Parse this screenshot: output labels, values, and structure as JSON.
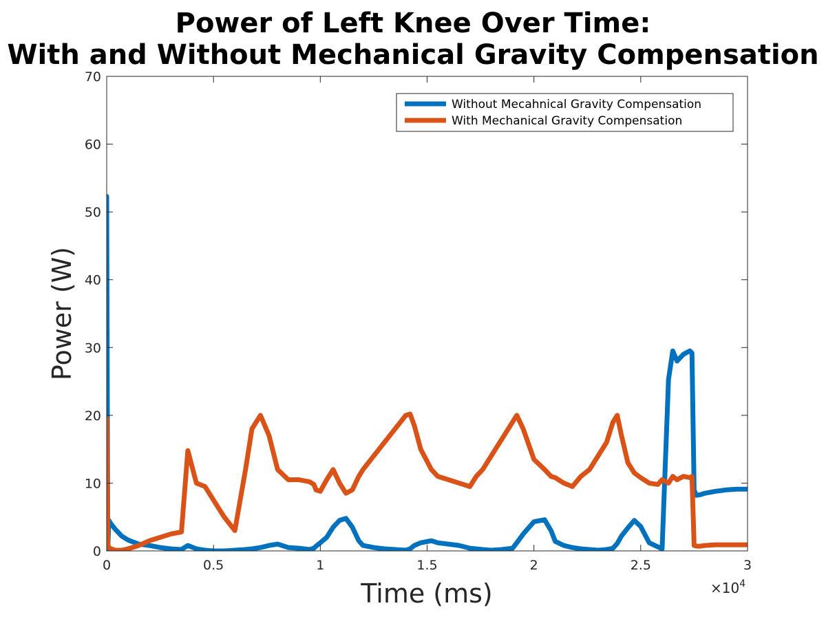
{
  "chart_data": {
    "type": "line",
    "title_lines": [
      "Power of Left Knee Over Time:",
      "With and Without Mechanical Gravity Compensation"
    ],
    "xlabel": "Time (ms)",
    "ylabel": "Power (W)",
    "x_exponent_base": "×10",
    "x_exponent_power": "4",
    "xlim": [
      0,
      3
    ],
    "ylim": [
      0,
      70
    ],
    "x_ticks": [
      0,
      0.5,
      1,
      1.5,
      2,
      2.5,
      3
    ],
    "x_tick_labels": [
      "0",
      "0.5",
      "1",
      "1.5",
      "2",
      "2.5",
      "3"
    ],
    "y_ticks": [
      0,
      10,
      20,
      30,
      40,
      50,
      60,
      70
    ],
    "y_tick_labels": [
      "0",
      "10",
      "20",
      "30",
      "40",
      "50",
      "60",
      "70"
    ],
    "grid": false,
    "legend_position": "top-right",
    "series": [
      {
        "name": "Without Mecahnical Gravity Compensation",
        "color": "#0072BD",
        "x": [
          0,
          0.005,
          0.01,
          0.02,
          0.04,
          0.07,
          0.1,
          0.15,
          0.2,
          0.25,
          0.3,
          0.35,
          0.38,
          0.42,
          0.46,
          0.5,
          0.55,
          0.6,
          0.65,
          0.68,
          0.72,
          0.76,
          0.8,
          0.85,
          0.9,
          0.95,
          0.97,
          0.98,
          1.0,
          1.03,
          1.06,
          1.09,
          1.12,
          1.15,
          1.18,
          1.2,
          1.25,
          1.3,
          1.35,
          1.4,
          1.42,
          1.44,
          1.47,
          1.52,
          1.55,
          1.6,
          1.65,
          1.7,
          1.73,
          1.76,
          1.8,
          1.85,
          1.9,
          1.92,
          1.95,
          2.0,
          2.05,
          2.08,
          2.1,
          2.14,
          2.18,
          2.22,
          2.26,
          2.3,
          2.34,
          2.37,
          2.39,
          2.41,
          2.44,
          2.47,
          2.5,
          2.54,
          2.58,
          2.6,
          2.63,
          2.65,
          2.67,
          2.7,
          2.73,
          2.74,
          2.75,
          2.76,
          2.78,
          2.8,
          2.85,
          2.9,
          2.95,
          3.0
        ],
        "y": [
          52.3,
          0.3,
          4.5,
          4.0,
          3.2,
          2.2,
          1.6,
          1.0,
          0.8,
          0.5,
          0.3,
          0.2,
          0.8,
          0.3,
          0.1,
          0.0,
          0.0,
          0.1,
          0.2,
          0.3,
          0.5,
          0.8,
          1.0,
          0.5,
          0.4,
          0.2,
          0.4,
          0.7,
          1.2,
          2.0,
          3.5,
          4.5,
          4.8,
          3.5,
          1.5,
          0.8,
          0.5,
          0.3,
          0.2,
          0.1,
          0.3,
          0.8,
          1.2,
          1.5,
          1.2,
          1.0,
          0.8,
          0.4,
          0.3,
          0.2,
          0.1,
          0.2,
          0.4,
          1.2,
          2.5,
          4.3,
          4.6,
          3.0,
          1.4,
          0.8,
          0.5,
          0.3,
          0.2,
          0.1,
          0.2,
          0.4,
          1.1,
          2.2,
          3.4,
          4.5,
          3.6,
          1.2,
          0.6,
          0.3,
          25.3,
          29.5,
          28.0,
          29.0,
          29.5,
          29.2,
          9.0,
          8.2,
          8.3,
          8.5,
          8.8,
          9.0,
          9.1,
          9.1
        ]
      },
      {
        "name": "With Mechanical Gravity Compensation",
        "color": "#D95319",
        "x": [
          0,
          0.005,
          0.01,
          0.02,
          0.04,
          0.07,
          0.1,
          0.15,
          0.2,
          0.25,
          0.3,
          0.35,
          0.38,
          0.42,
          0.46,
          0.5,
          0.55,
          0.6,
          0.65,
          0.68,
          0.72,
          0.76,
          0.8,
          0.85,
          0.9,
          0.95,
          0.97,
          0.98,
          1.0,
          1.03,
          1.06,
          1.09,
          1.12,
          1.15,
          1.18,
          1.2,
          1.25,
          1.3,
          1.35,
          1.4,
          1.42,
          1.44,
          1.47,
          1.52,
          1.55,
          1.6,
          1.65,
          1.7,
          1.73,
          1.76,
          1.8,
          1.85,
          1.9,
          1.92,
          1.95,
          2.0,
          2.05,
          2.08,
          2.1,
          2.14,
          2.18,
          2.22,
          2.26,
          2.3,
          2.34,
          2.37,
          2.39,
          2.41,
          2.44,
          2.47,
          2.5,
          2.54,
          2.58,
          2.6,
          2.63,
          2.65,
          2.67,
          2.7,
          2.73,
          2.74,
          2.75,
          2.76,
          2.78,
          2.8,
          2.85,
          2.9,
          2.95,
          3.0
        ],
        "y": [
          19.5,
          1.0,
          0.5,
          0.3,
          0.1,
          0.1,
          0.3,
          0.8,
          1.5,
          2.0,
          2.5,
          2.8,
          14.8,
          10.0,
          9.5,
          7.5,
          5.0,
          3.0,
          12.0,
          18.0,
          20.0,
          17.0,
          12.0,
          10.5,
          10.5,
          10.2,
          9.8,
          9.0,
          8.8,
          10.5,
          12.0,
          10.0,
          8.5,
          9.0,
          11.0,
          12.0,
          14.0,
          16.0,
          18.0,
          20.0,
          20.2,
          18.5,
          15.0,
          12.0,
          11.0,
          10.5,
          10.0,
          9.5,
          11.0,
          12.0,
          14.0,
          16.5,
          19.0,
          20.0,
          18.0,
          13.5,
          12.0,
          11.0,
          10.8,
          10.0,
          9.5,
          11.0,
          12.0,
          14.0,
          16.0,
          19.0,
          20.0,
          17.0,
          13.0,
          11.5,
          10.8,
          10.0,
          9.8,
          10.5,
          10.0,
          11.0,
          10.5,
          11.0,
          10.8,
          11.0,
          0.8,
          0.7,
          0.7,
          0.8,
          0.9,
          0.9,
          0.9,
          0.9
        ]
      }
    ]
  }
}
